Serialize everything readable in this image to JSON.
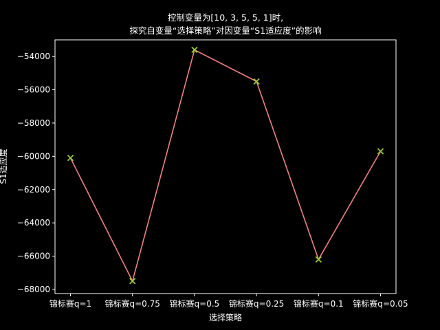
{
  "chart_data": {
    "type": "line",
    "title_lines": [
      "控制变量为[10, 3, 5, 5, 1]时,",
      "探究自变量“选择策略”对因变量“S1适应度”的影响"
    ],
    "xlabel": "选择策略",
    "ylabel": "S1适应度",
    "categories": [
      "锦标赛q=1",
      "锦标赛q=0.75",
      "锦标赛q=0.5",
      "锦标赛q=0.25",
      "锦标赛q=0.1",
      "锦标赛q=0.05"
    ],
    "values": [
      -60100,
      -67500,
      -53600,
      -55500,
      -66200,
      -59700
    ],
    "ylim": [
      -68250,
      -53000
    ],
    "yticks": [
      -68000,
      -66000,
      -64000,
      -62000,
      -60000,
      -58000,
      -56000,
      -54000
    ],
    "ytick_labels": [
      "−68000",
      "−66000",
      "−64000",
      "−62000",
      "−60000",
      "−58000",
      "−56000",
      "−54000"
    ],
    "grid": false,
    "legend": "none",
    "colors": {
      "background": "#000000",
      "axes": "#ffffff",
      "line": "#f08080",
      "marker": "#9acd32",
      "text": "#ffffff"
    },
    "marker": "x"
  }
}
